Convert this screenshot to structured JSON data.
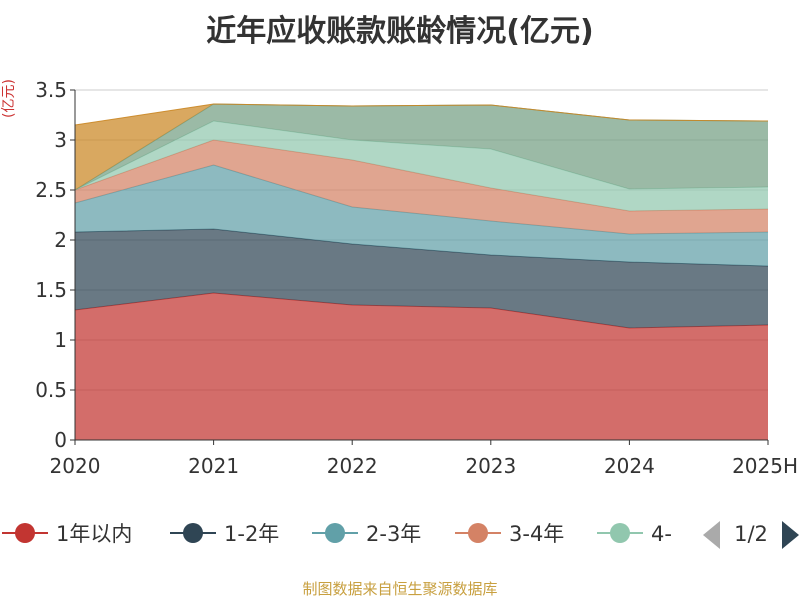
{
  "title": "近年应收账款账龄情况(亿元)",
  "unit_label": "(亿元)",
  "footer": "制图数据来自恒生聚源数据库",
  "legend": {
    "items": [
      {
        "label": "1年以内",
        "color": "#c23531"
      },
      {
        "label": "1-2年",
        "color": "#2f4554"
      },
      {
        "label": "2-3年",
        "color": "#61a0a8"
      },
      {
        "label": "3-4年",
        "color": "#d48265"
      },
      {
        "label": "4-",
        "color": "#91c7ae"
      }
    ],
    "page": "1/2"
  },
  "chart_data": {
    "type": "area",
    "stacked": true,
    "title": "近年应收账款账龄情况(亿元)",
    "ylabel": "(亿元)",
    "categories": [
      "2020",
      "2021",
      "2022",
      "2023",
      "2024",
      "2025H"
    ],
    "ylim": [
      0,
      3.5
    ],
    "yticks": [
      "0",
      "0.5",
      "1",
      "1.5",
      "2",
      "2.5",
      "3",
      "3.5"
    ],
    "grid": true,
    "legend_position": "bottom",
    "series": [
      {
        "name": "1年以内",
        "color": "#c23531",
        "values": [
          1.3,
          1.47,
          1.35,
          1.32,
          1.12,
          1.15
        ]
      },
      {
        "name": "1-2年",
        "color": "#2f4554",
        "values": [
          0.78,
          0.64,
          0.61,
          0.53,
          0.66,
          0.59
        ]
      },
      {
        "name": "2-3年",
        "color": "#61a0a8",
        "values": [
          0.29,
          0.64,
          0.37,
          0.34,
          0.28,
          0.34
        ]
      },
      {
        "name": "3-4年",
        "color": "#d48265",
        "values": [
          0.13,
          0.25,
          0.47,
          0.33,
          0.23,
          0.23
        ]
      },
      {
        "name": "4-",
        "color": "#91c7ae",
        "values": [
          0.0,
          0.19,
          0.2,
          0.39,
          0.22,
          0.22
        ]
      },
      {
        "name": "",
        "color": "#749f83",
        "values": [
          0.0,
          0.17,
          0.34,
          0.44,
          0.69,
          0.66
        ]
      },
      {
        "name": "",
        "color": "#ca8622",
        "values": [
          0.65,
          0.0,
          0.0,
          0.0,
          0.0,
          0.0
        ]
      }
    ]
  }
}
